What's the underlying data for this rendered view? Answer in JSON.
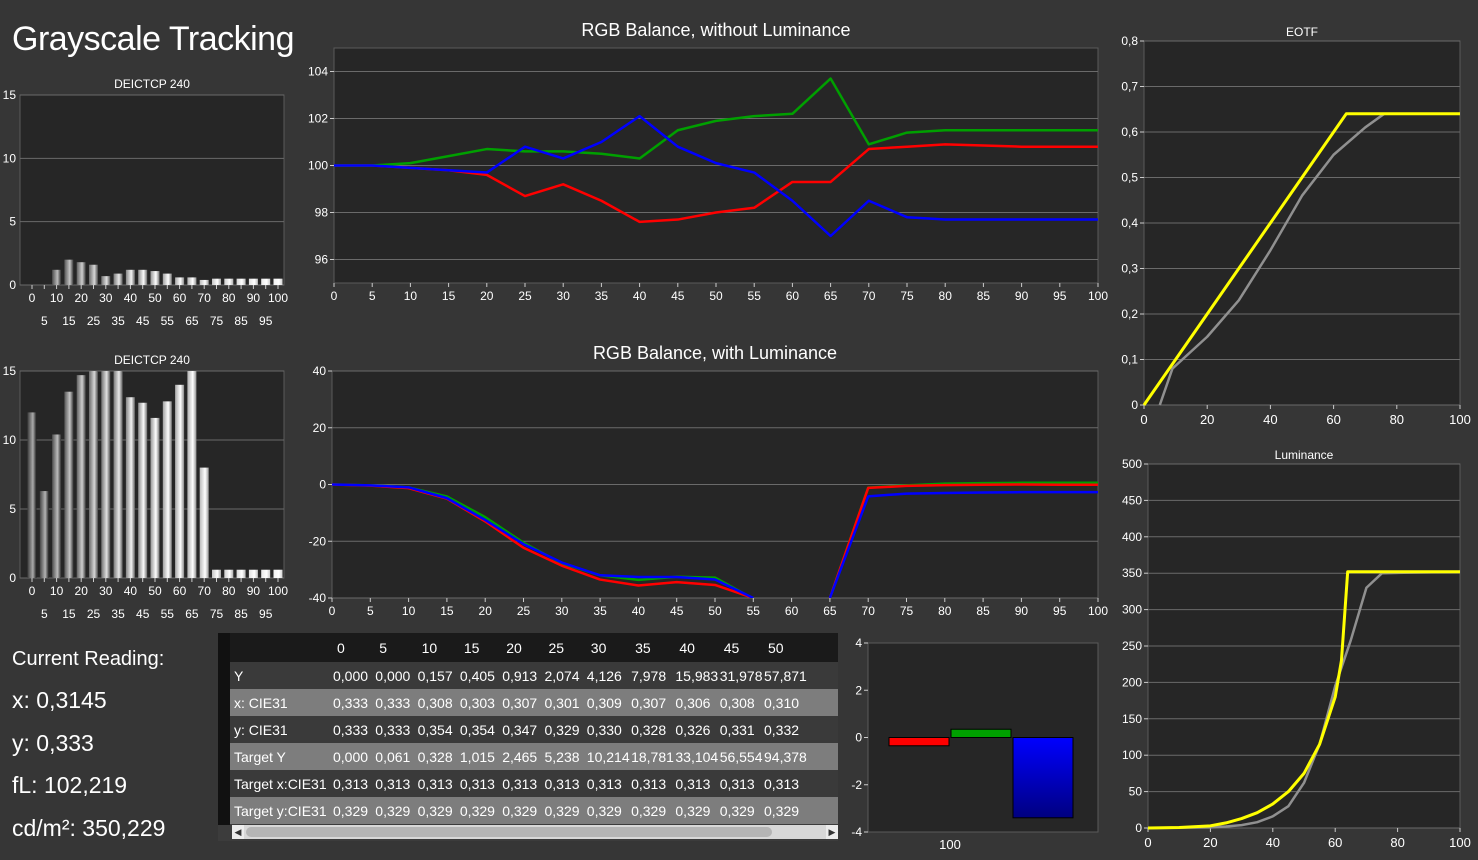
{
  "page": {
    "title": "Grayscale Tracking"
  },
  "reading": {
    "header": "Current Reading:",
    "x": "x: 0,3145",
    "y": "y: 0,333",
    "fl": "fL: 102,219",
    "cdm2": "cd/m²: 350,229"
  },
  "colors": {
    "red": "#ff0000",
    "green": "#00a000",
    "blue": "#0000ff",
    "yellow": "#ffff00",
    "gray": "#909090",
    "panel": "#262626",
    "grid": "#6a6a6a"
  },
  "chart_data": [
    {
      "id": "deltaE_top",
      "type": "bar",
      "title": "DEICTCP 240",
      "categories": [
        0,
        5,
        10,
        15,
        20,
        25,
        30,
        35,
        40,
        45,
        50,
        55,
        60,
        65,
        70,
        75,
        80,
        85,
        90,
        95,
        100
      ],
      "xticks_top": [
        "0",
        "10",
        "20",
        "30",
        "40",
        "50",
        "60",
        "70",
        "80",
        "90",
        "100"
      ],
      "xticks_bottom": [
        "5",
        "15",
        "25",
        "35",
        "45",
        "55",
        "65",
        "75",
        "85",
        "95"
      ],
      "values": [
        0,
        0,
        1.2,
        2.0,
        1.8,
        1.6,
        0.7,
        0.9,
        1.2,
        1.2,
        1.1,
        0.9,
        0.6,
        0.6,
        0.4,
        0.5,
        0.5,
        0.5,
        0.5,
        0.5,
        0.5
      ],
      "ylim": [
        0,
        15
      ],
      "yticks": [
        "0",
        "5",
        "10",
        "15"
      ]
    },
    {
      "id": "deltaE_bottom",
      "type": "bar",
      "title": "DEICTCP 240",
      "categories": [
        0,
        5,
        10,
        15,
        20,
        25,
        30,
        35,
        40,
        45,
        50,
        55,
        60,
        65,
        70,
        75,
        80,
        85,
        90,
        95,
        100
      ],
      "xticks_top": [
        "0",
        "10",
        "20",
        "30",
        "40",
        "50",
        "60",
        "70",
        "80",
        "90",
        "100"
      ],
      "xticks_bottom": [
        "5",
        "15",
        "25",
        "35",
        "45",
        "55",
        "65",
        "75",
        "85",
        "95"
      ],
      "values": [
        12.0,
        6.3,
        10.4,
        13.5,
        14.7,
        15,
        15,
        15,
        13.1,
        12.7,
        11.6,
        12.8,
        14.0,
        15,
        8.0,
        0.6,
        0.6,
        0.6,
        0.6,
        0.6,
        0.6
      ],
      "ylim": [
        0,
        15
      ],
      "yticks": [
        "0",
        "5",
        "10",
        "15"
      ]
    },
    {
      "id": "rgb_no_lum",
      "type": "line",
      "title": "RGB Balance, without Luminance",
      "x": [
        0,
        5,
        10,
        15,
        20,
        25,
        30,
        35,
        40,
        45,
        50,
        55,
        60,
        65,
        70,
        75,
        80,
        85,
        90,
        95,
        100
      ],
      "xticks": [
        "0",
        "5",
        "10",
        "15",
        "20",
        "25",
        "30",
        "35",
        "40",
        "45",
        "50",
        "55",
        "60",
        "65",
        "70",
        "75",
        "80",
        "85",
        "90",
        "95",
        "100"
      ],
      "series": [
        {
          "color": "red",
          "values": [
            100,
            100,
            99.9,
            99.8,
            99.6,
            98.7,
            99.2,
            98.5,
            97.6,
            97.7,
            98.0,
            98.2,
            99.3,
            99.3,
            100.7,
            100.8,
            100.9,
            100.85,
            100.8,
            100.8,
            100.8
          ]
        },
        {
          "color": "green",
          "values": [
            100,
            100,
            100.1,
            100.4,
            100.7,
            100.6,
            100.6,
            100.5,
            100.3,
            101.5,
            101.9,
            102.1,
            102.2,
            103.7,
            100.9,
            101.4,
            101.5,
            101.5,
            101.5,
            101.5,
            101.5
          ]
        },
        {
          "color": "blue",
          "values": [
            100,
            100,
            99.9,
            99.8,
            99.7,
            100.8,
            100.3,
            101.0,
            102.1,
            100.8,
            100.1,
            99.7,
            98.5,
            97.0,
            98.5,
            97.8,
            97.7,
            97.7,
            97.7,
            97.7,
            97.7
          ]
        }
      ],
      "ylim": [
        95,
        105
      ],
      "yticks": [
        "96",
        "98",
        "100",
        "102",
        "104"
      ]
    },
    {
      "id": "rgb_with_lum",
      "type": "line",
      "title": "RGB Balance, with Luminance",
      "x": [
        0,
        5,
        10,
        15,
        20,
        25,
        30,
        35,
        40,
        45,
        50,
        55,
        60,
        65,
        70,
        75,
        80,
        85,
        90,
        95,
        100
      ],
      "xticks": [
        "0",
        "5",
        "10",
        "15",
        "20",
        "25",
        "30",
        "35",
        "40",
        "45",
        "50",
        "55",
        "60",
        "65",
        "70",
        "75",
        "80",
        "85",
        "90",
        "95",
        "100"
      ],
      "series": [
        {
          "color": "green",
          "values": [
            0,
            -0.3,
            -1.0,
            -4.2,
            -11.5,
            -20.5,
            -27.8,
            -32.0,
            -33.6,
            -32.5,
            -32.8,
            -40.2,
            null,
            -40,
            -1.1,
            -0.3,
            0.3,
            0.5,
            0.6,
            0.6,
            0.6
          ]
        },
        {
          "color": "red",
          "values": [
            0,
            -0.4,
            -1.3,
            -5.0,
            -13.0,
            -22.3,
            -28.6,
            -33.5,
            -35.6,
            -34.4,
            -35.4,
            -40,
            null,
            -40,
            -1.2,
            -0.5,
            -0.2,
            -0.1,
            0,
            -0.1,
            -0.1
          ]
        },
        {
          "color": "blue",
          "values": [
            0,
            -0.3,
            -1.0,
            -4.8,
            -12.5,
            -21.0,
            -27.5,
            -32.0,
            -32.6,
            -32.6,
            -33.5,
            -40,
            null,
            -40,
            -4.2,
            -3.2,
            -3.0,
            -2.8,
            -2.7,
            -2.7,
            -2.7
          ]
        }
      ],
      "ylim": [
        -40,
        40
      ],
      "yticks": [
        "-40",
        "-20",
        "0",
        "20",
        "40"
      ]
    },
    {
      "id": "eotf",
      "type": "line",
      "title": "EOTF",
      "x_label_ticks": [
        "0",
        "20",
        "40",
        "60",
        "80",
        "100"
      ],
      "series": [
        {
          "color": "yellow",
          "points": [
            [
              0,
              0
            ],
            [
              10,
              0.1
            ],
            [
              20,
              0.2
            ],
            [
              30,
              0.3
            ],
            [
              40,
              0.4
            ],
            [
              50,
              0.5
            ],
            [
              60,
              0.6
            ],
            [
              64,
              0.64
            ],
            [
              100,
              0.64
            ]
          ]
        },
        {
          "color": "gray",
          "points": [
            [
              5,
              0
            ],
            [
              9,
              0.08
            ],
            [
              20,
              0.15
            ],
            [
              30,
              0.23
            ],
            [
              40,
              0.34
            ],
            [
              50,
              0.46
            ],
            [
              60,
              0.55
            ],
            [
              70,
              0.61
            ],
            [
              76,
              0.64
            ],
            [
              100,
              0.64
            ]
          ]
        }
      ],
      "xlim": [
        0,
        100
      ],
      "ylim": [
        0,
        0.8
      ],
      "yticks": [
        "0",
        "0,1",
        "0,2",
        "0,3",
        "0,4",
        "0,5",
        "0,6",
        "0,7",
        "0,8"
      ]
    },
    {
      "id": "luminance",
      "type": "line",
      "title": "Luminance",
      "x_label_ticks": [
        "0",
        "20",
        "40",
        "60",
        "80",
        "100"
      ],
      "series": [
        {
          "color": "yellow",
          "points": [
            [
              0,
              0
            ],
            [
              10,
              0.7
            ],
            [
              20,
              3
            ],
            [
              25,
              7
            ],
            [
              30,
              13
            ],
            [
              35,
              21
            ],
            [
              40,
              33
            ],
            [
              45,
              50
            ],
            [
              50,
              75
            ],
            [
              55,
              115
            ],
            [
              60,
              180
            ],
            [
              62,
              230
            ],
            [
              64,
              352
            ],
            [
              100,
              352
            ]
          ]
        },
        {
          "color": "gray",
          "points": [
            [
              0,
              0
            ],
            [
              20,
              0.8
            ],
            [
              25,
              2
            ],
            [
              30,
              4
            ],
            [
              35,
              8
            ],
            [
              40,
              16
            ],
            [
              45,
              30
            ],
            [
              50,
              62
            ],
            [
              55,
              115
            ],
            [
              60,
              195
            ],
            [
              65,
              258
            ],
            [
              70,
              330
            ],
            [
              75,
              350
            ],
            [
              100,
              352
            ]
          ]
        }
      ],
      "xlim": [
        0,
        100
      ],
      "ylim": [
        0,
        500
      ],
      "yticks": [
        "0",
        "50",
        "100",
        "150",
        "200",
        "250",
        "300",
        "350",
        "400",
        "450",
        "500"
      ]
    },
    {
      "id": "rgb_bars",
      "type": "bar",
      "categories": [
        "100"
      ],
      "series": [
        {
          "color": "red",
          "values": [
            -0.35
          ]
        },
        {
          "color": "green",
          "values": [
            0.35
          ]
        },
        {
          "color": "blue",
          "values": [
            -3.4
          ]
        }
      ],
      "ylim": [
        -4,
        4
      ],
      "yticks": [
        "-4",
        "-2",
        "0",
        "2",
        "4"
      ]
    },
    {
      "id": "readings_table",
      "type": "table",
      "columns": [
        "0",
        "5",
        "10",
        "15",
        "20",
        "25",
        "30",
        "35",
        "40",
        "45",
        "50"
      ],
      "rows": [
        {
          "label": "Y",
          "values": [
            "0,000",
            "0,000",
            "0,157",
            "0,405",
            "0,913",
            "2,074",
            "4,126",
            "7,978",
            "15,983",
            "31,978",
            "57,871"
          ]
        },
        {
          "label": "x: CIE31",
          "values": [
            "0,333",
            "0,333",
            "0,308",
            "0,303",
            "0,307",
            "0,301",
            "0,309",
            "0,307",
            "0,306",
            "0,308",
            "0,310"
          ]
        },
        {
          "label": "y: CIE31",
          "values": [
            "0,333",
            "0,333",
            "0,354",
            "0,354",
            "0,347",
            "0,329",
            "0,330",
            "0,328",
            "0,326",
            "0,331",
            "0,332"
          ]
        },
        {
          "label": "Target Y",
          "values": [
            "0,000",
            "0,061",
            "0,328",
            "1,015",
            "2,465",
            "5,238",
            "10,214",
            "18,781",
            "33,104",
            "56,554",
            "94,378"
          ]
        },
        {
          "label": "Target x:CIE31",
          "values": [
            "0,313",
            "0,313",
            "0,313",
            "0,313",
            "0,313",
            "0,313",
            "0,313",
            "0,313",
            "0,313",
            "0,313",
            "0,313"
          ]
        },
        {
          "label": "Target y:CIE31",
          "values": [
            "0,329",
            "0,329",
            "0,329",
            "0,329",
            "0,329",
            "0,329",
            "0,329",
            "0,329",
            "0,329",
            "0,329",
            "0,329"
          ]
        }
      ]
    }
  ]
}
